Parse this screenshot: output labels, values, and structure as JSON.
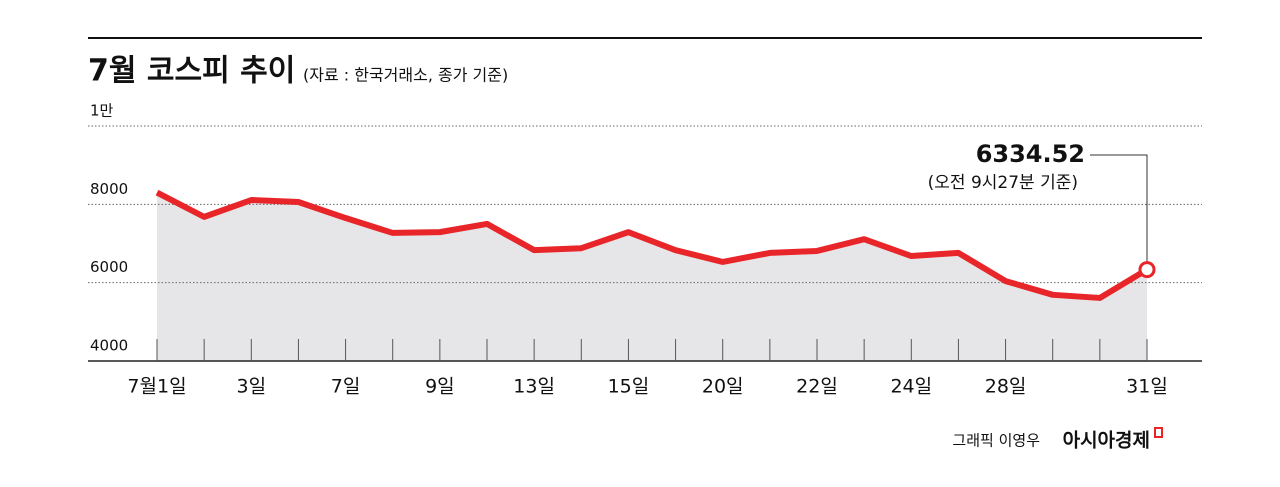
{
  "chart_data": {
    "type": "line",
    "title": "7월 코스피 추이",
    "subtitle": "(자료 : 한국거래소, 종가 기준)",
    "categories": [
      "7월1일",
      null,
      "3일",
      null,
      "7일",
      null,
      "9일",
      null,
      "13일",
      null,
      "15일",
      null,
      "20일",
      null,
      "22일",
      null,
      "24일",
      null,
      "28일",
      null,
      null,
      "31일"
    ],
    "series": [
      {
        "name": "코스피",
        "color": "#e8262a",
        "values": [
          8300,
          7680,
          8110,
          8060,
          7650,
          7270,
          7290,
          7500,
          6830,
          6880,
          7290,
          6830,
          6530,
          6760,
          6810,
          7110,
          6680,
          6760,
          6040,
          5690,
          5610,
          6334.52
        ]
      }
    ],
    "ylim": [
      4000,
      10000
    ],
    "yticks": [
      4000,
      6000,
      8000,
      {
        "value": 10000,
        "label": "1만"
      }
    ],
    "grid": true,
    "area_color": "#e6e6e9",
    "annotation": "(오전 9시27분 기준)",
    "credit": "그래픽 이영우",
    "brand": "아시아경제"
  }
}
